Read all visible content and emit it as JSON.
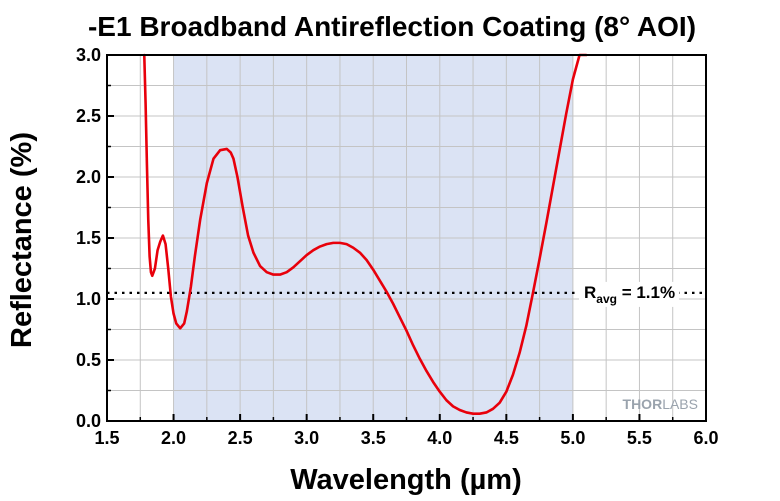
{
  "chart_data": {
    "type": "line",
    "title": "-E1 Broadband Antireflection Coating (8° AOI)",
    "xlabel": "Wavelength (µm)",
    "ylabel": "Reflectance (%)",
    "xlim": [
      1.5,
      6.0
    ],
    "ylim": [
      0.0,
      3.0
    ],
    "xticks": [
      "1.5",
      "2.0",
      "2.5",
      "3.0",
      "3.5",
      "4.0",
      "4.5",
      "5.0",
      "5.5",
      "6.0"
    ],
    "yticks": [
      "0.0",
      "0.5",
      "1.0",
      "1.5",
      "2.0",
      "2.5",
      "3.0"
    ],
    "grid": true,
    "shaded_band": {
      "x": [
        2.0,
        5.0
      ],
      "color": "#dbe3f4"
    },
    "reference_line": {
      "y": 1.05,
      "style": "dotted",
      "label_main": "R",
      "label_sub": "avg",
      "label_rest": " = 1.1%"
    },
    "series": [
      {
        "color": "#e8000b",
        "x": [
          1.78,
          1.79,
          1.8,
          1.81,
          1.82,
          1.83,
          1.84,
          1.86,
          1.88,
          1.9,
          1.92,
          1.94,
          1.96,
          1.98,
          2.0,
          2.02,
          2.05,
          2.08,
          2.1,
          2.13,
          2.16,
          2.2,
          2.25,
          2.3,
          2.35,
          2.4,
          2.43,
          2.45,
          2.48,
          2.52,
          2.56,
          2.6,
          2.65,
          2.7,
          2.75,
          2.8,
          2.85,
          2.9,
          2.95,
          3.0,
          3.05,
          3.1,
          3.15,
          3.2,
          3.25,
          3.3,
          3.35,
          3.4,
          3.45,
          3.5,
          3.55,
          3.6,
          3.65,
          3.7,
          3.75,
          3.8,
          3.85,
          3.9,
          3.95,
          4.0,
          4.05,
          4.1,
          4.15,
          4.2,
          4.25,
          4.3,
          4.35,
          4.4,
          4.45,
          4.5,
          4.55,
          4.6,
          4.65,
          4.7,
          4.75,
          4.8,
          4.85,
          4.9,
          4.95,
          5.0,
          5.05,
          5.1
        ],
        "y": [
          3.0,
          2.6,
          2.1,
          1.65,
          1.35,
          1.22,
          1.19,
          1.25,
          1.4,
          1.47,
          1.52,
          1.45,
          1.25,
          1.02,
          0.88,
          0.8,
          0.76,
          0.8,
          0.9,
          1.1,
          1.35,
          1.65,
          1.95,
          2.15,
          2.22,
          2.23,
          2.2,
          2.15,
          2.0,
          1.75,
          1.52,
          1.38,
          1.27,
          1.22,
          1.2,
          1.2,
          1.22,
          1.26,
          1.31,
          1.36,
          1.4,
          1.43,
          1.45,
          1.46,
          1.46,
          1.45,
          1.42,
          1.38,
          1.32,
          1.24,
          1.15,
          1.06,
          0.96,
          0.85,
          0.74,
          0.62,
          0.51,
          0.41,
          0.32,
          0.24,
          0.17,
          0.12,
          0.09,
          0.07,
          0.06,
          0.06,
          0.07,
          0.1,
          0.15,
          0.24,
          0.38,
          0.56,
          0.78,
          1.05,
          1.33,
          1.62,
          1.92,
          2.22,
          2.52,
          2.8,
          3.0,
          3.0
        ]
      }
    ],
    "watermark_bold": "THOR",
    "watermark_light": "LABS"
  }
}
